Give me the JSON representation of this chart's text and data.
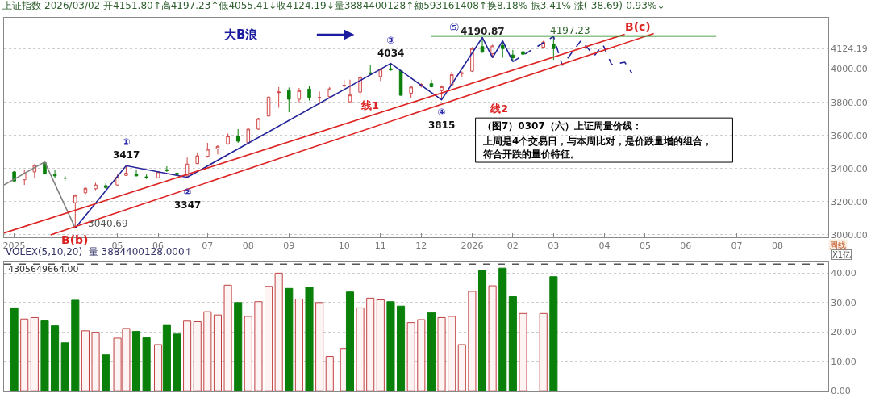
{
  "chart_data": [
    {
      "type": "candlestick",
      "title": "上证指数 2026/03/02 开4151.80↑高4197.23↑低4055.41↓收4124.19↓量3884400128↑额593161408↑换8.18% 振3.41% 涨(-38.69)-0.93%↓",
      "x": [
        "2025-02-24",
        "2025-03-03",
        "2025-03-10",
        "2025-03-17",
        "2025-03-24",
        "2025-03-31",
        "2025-04-07",
        "2025-04-14",
        "2025-04-21",
        "2025-04-28",
        "2025-05-06",
        "2025-05-12",
        "2025-05-19",
        "2025-05-26",
        "2025-06-03",
        "2025-06-09",
        "2025-06-16",
        "2025-06-23",
        "2025-06-30",
        "2025-07-07",
        "2025-07-14",
        "2025-07-21",
        "2025-07-28",
        "2025-08-04",
        "2025-08-11",
        "2025-08-18",
        "2025-08-25",
        "2025-09-01",
        "2025-09-08",
        "2025-09-15",
        "2025-09-22",
        "2025-09-29",
        "2025-10-09",
        "2025-10-13",
        "2025-10-20",
        "2025-10-27",
        "2025-11-03",
        "2025-11-10",
        "2025-11-17",
        "2025-11-24",
        "2025-12-01",
        "2025-12-08",
        "2025-12-15",
        "2025-12-22",
        "2025-12-29",
        "2026-01-05",
        "2026-01-12",
        "2026-01-19",
        "2026-01-26",
        "2026-02-02",
        "2026-02-09",
        "2026-02-23",
        "2026-03-02"
      ],
      "ohlc": [
        [
          3380,
          3385,
          3320,
          3325
        ],
        [
          3332,
          3395,
          3301,
          3372
        ],
        [
          3380,
          3427,
          3340,
          3419
        ],
        [
          3435,
          3440,
          3365,
          3367
        ],
        [
          3364,
          3391,
          3341,
          3356
        ],
        [
          3344,
          3356,
          3325,
          3342
        ],
        [
          3194,
          3245,
          3040.69,
          3238
        ],
        [
          3254,
          3289,
          3245,
          3281
        ],
        [
          3278,
          3314,
          3270,
          3301
        ],
        [
          3297,
          3309,
          3277,
          3286
        ],
        [
          3301,
          3364,
          3293,
          3348
        ],
        [
          3359,
          3417,
          3356,
          3372
        ],
        [
          3367,
          3391,
          3353,
          3356
        ],
        [
          3350,
          3364,
          3337,
          3347
        ],
        [
          3344,
          3385,
          3340,
          3380
        ],
        [
          3393,
          3414,
          3380,
          3388
        ],
        [
          3372,
          3388,
          3359,
          3364
        ],
        [
          3356,
          3466,
          3347,
          3427
        ],
        [
          3430,
          3497,
          3427,
          3477
        ],
        [
          3474,
          3555,
          3466,
          3516
        ],
        [
          3518,
          3540,
          3486,
          3534
        ],
        [
          3549,
          3611,
          3544,
          3596
        ],
        [
          3596,
          3638,
          3555,
          3565
        ],
        [
          3555,
          3646,
          3552,
          3638
        ],
        [
          3638,
          3706,
          3634,
          3701
        ],
        [
          3717,
          3836,
          3714,
          3831
        ],
        [
          3858,
          3892,
          3767,
          3862
        ],
        [
          3870,
          3889,
          3740,
          3818
        ],
        [
          3818,
          3886,
          3800,
          3870
        ],
        [
          3880,
          3901,
          3810,
          3829
        ],
        [
          3825,
          3865,
          3787,
          3829
        ],
        [
          3834,
          3892,
          3826,
          3881
        ],
        [
          3898,
          3936,
          3889,
          3902
        ],
        [
          3803,
          3936,
          3800,
          3844
        ],
        [
          3861,
          3960,
          3827,
          3951
        ],
        [
          3978,
          4027,
          3967,
          3972
        ],
        [
          3955,
          4006,
          3928,
          3999
        ],
        [
          4002,
          4034,
          3991,
          3995
        ],
        [
          3991,
          3995,
          3839,
          3842
        ],
        [
          3855,
          3897,
          3823,
          3892
        ],
        [
          3903,
          3915,
          3889,
          3907
        ],
        [
          3912,
          3936,
          3889,
          3894
        ],
        [
          3870,
          3902,
          3815,
          3894
        ],
        [
          3905,
          3983,
          3902,
          3967
        ],
        [
          3973,
          3986,
          3955,
          3977
        ],
        [
          3988,
          4132,
          3983,
          4124
        ],
        [
          4136,
          4190.87,
          4097,
          4105
        ],
        [
          4093,
          4147,
          4069,
          4140
        ],
        [
          4143,
          4171,
          4069,
          4124
        ],
        [
          4085,
          4116,
          4045,
          4069
        ],
        [
          4105,
          4140,
          4077,
          4090
        ],
        [
          4132,
          4171,
          4124,
          4163
        ],
        [
          4151.8,
          4197.23,
          4055.41,
          4124.19
        ]
      ],
      "colors": [
        "#0a800a",
        "#d04545",
        "#d04545",
        "#0a800a",
        "#0a800a",
        "#0a800a",
        "#d04545",
        "#d04545",
        "#d04545",
        "#0a800a",
        "#d04545",
        "#d04545",
        "#0a800a",
        "#0a800a",
        "#d04545",
        "#0a800a",
        "#0a800a",
        "#d04545",
        "#d04545",
        "#d04545",
        "#d04545",
        "#d04545",
        "#0a800a",
        "#d04545",
        "#d04545",
        "#d04545",
        "#d04545",
        "#0a800a",
        "#d04545",
        "#0a800a",
        "#d04545",
        "#d04545",
        "#d04545",
        "#d04545",
        "#d04545",
        "#0a800a",
        "#d04545",
        "#0a800a",
        "#0a800a",
        "#d04545",
        "#d04545",
        "#0a800a",
        "#d04545",
        "#d04545",
        "#d04545",
        "#d04545",
        "#0a800a",
        "#d04545",
        "#0a800a",
        "#0a800a",
        "#0a800a",
        "#d04545",
        "#0a800a"
      ],
      "series": [
        {
          "type": "line",
          "color": "#808080",
          "x": [
            "2025-02-17",
            "2025-03-17",
            "2025-04-07"
          ],
          "values": [
            3301,
            3440,
            3040.69
          ]
        },
        {
          "type": "line",
          "color": "#22229a",
          "x": [
            "2025-04-07",
            "2025-05-12",
            "2025-06-23",
            "2025-11-10",
            "2025-12-15",
            "2026-01-12",
            "2026-01-19",
            "2026-01-26",
            "2026-02-02"
          ],
          "values": [
            3040.69,
            3417,
            3347,
            4034,
            3815,
            4190.87,
            4069,
            4171,
            4045
          ]
        },
        {
          "type": "line",
          "color": "#22229a",
          "line_style": "dashed",
          "x": [
            "2026-02-02",
            "2026-03-02",
            "2026-03-08",
            "2026-03-21",
            "2026-03-30",
            "2026-04-05",
            "2026-04-11",
            "2026-04-20",
            "2026-04-25"
          ],
          "values": [
            4045,
            4197.23,
            4022,
            4174,
            4080,
            4147,
            4027,
            4042,
            3975
          ]
        },
        {
          "type": "line",
          "color": "#dd2222",
          "x": [
            "2025-02-17",
            "2026-04-20"
          ],
          "values": [
            3011,
            4210
          ]
        },
        {
          "type": "line",
          "color": "#dd2222",
          "x": [
            "2025-03-21",
            "2026-05-10"
          ],
          "values": [
            3000,
            4215
          ]
        },
        {
          "type": "line",
          "color": "#1a8a1a",
          "x": [
            "2025-12-08",
            "2026-06-22"
          ],
          "values": [
            4200,
            4200
          ]
        }
      ],
      "xlim": [
        "2025-02-17",
        "2026-09-07"
      ],
      "xticks": [
        {
          "value": "2025-02-24",
          "label": "2025"
        },
        {
          "value": "2025-05-06",
          "label": "05"
        },
        {
          "value": "2025-06-03",
          "label": "06"
        },
        {
          "value": "2025-07-07",
          "label": "07"
        },
        {
          "value": "2025-08-04",
          "label": "08"
        },
        {
          "value": "2025-09-01",
          "label": "09"
        },
        {
          "value": "2025-10-09",
          "label": "10"
        },
        {
          "value": "2025-11-03",
          "label": "11"
        },
        {
          "value": "2025-12-01",
          "label": "12"
        },
        {
          "value": "2026-01-05",
          "label": "2026"
        },
        {
          "value": "2026-02-02",
          "label": "02"
        },
        {
          "value": "2026-03-02",
          "label": "03"
        },
        {
          "value": "2026-04-06",
          "label": "04"
        },
        {
          "value": "2026-05-04",
          "label": "05"
        },
        {
          "value": "2026-06-01",
          "label": "06"
        },
        {
          "value": "2026-07-06",
          "label": "07"
        },
        {
          "value": "2026-08-03",
          "label": "08"
        }
      ],
      "ylim": [
        2985,
        4310
      ],
      "yticks": [
        {
          "value": 3000,
          "label": "3000.00"
        },
        {
          "value": 3200,
          "label": "3200.00"
        },
        {
          "value": 3400,
          "label": "3400.00"
        },
        {
          "value": 3600,
          "label": "3600.00"
        },
        {
          "value": 3800,
          "label": "3800.00"
        },
        {
          "value": 4000,
          "label": "4000.00"
        },
        {
          "value": 4124.19,
          "label": "4124.19"
        }
      ],
      "grid": "y",
      "annotations": [
        "大B浪",
        {
          "text": "①\n3417",
          "x": "2025-05-12",
          "y": 3417
        },
        {
          "text": "②\n3347",
          "x": "2025-06-23",
          "y": 3347
        },
        {
          "text": "③\n4034",
          "x": "2025-11-10",
          "y": 4034
        },
        {
          "text": "④\n3815",
          "x": "2025-12-15",
          "y": 3815
        },
        "⑤",
        {
          "text": "4190.87",
          "x": "2026-01-12",
          "y": 4190.87
        },
        {
          "text": "4197.23",
          "x": "2026-03-02",
          "y": 4197.23
        },
        {
          "text": "B(b)",
          "x": "2025-04-07",
          "y": 3040.69
        },
        {
          "text": "3040.69",
          "x": "2025-04-07",
          "y": 3040.69
        },
        {
          "text": "B(c)",
          "x": "2026-04-27",
          "y": 4177
        },
        "线1",
        "线2",
        "（图7）0307（六）上证周量价线：",
        "上周是4个交易日，与本周比对，是价跌量增的组合，",
        "符合开跌的量价特征。",
        "周线"
      ]
    },
    {
      "type": "bar",
      "title": "VOLEX(5,10,20)  量 3884400128.000↑",
      "ylabel": "X1亿",
      "x": [
        "2025-02-24",
        "2025-03-03",
        "2025-03-10",
        "2025-03-17",
        "2025-03-24",
        "2025-03-31",
        "2025-04-07",
        "2025-04-14",
        "2025-04-21",
        "2025-04-28",
        "2025-05-06",
        "2025-05-12",
        "2025-05-19",
        "2025-05-26",
        "2025-06-03",
        "2025-06-09",
        "2025-06-16",
        "2025-06-23",
        "2025-06-30",
        "2025-07-07",
        "2025-07-14",
        "2025-07-21",
        "2025-07-28",
        "2025-08-04",
        "2025-08-11",
        "2025-08-18",
        "2025-08-25",
        "2025-09-01",
        "2025-09-08",
        "2025-09-15",
        "2025-09-22",
        "2025-09-29",
        "2025-10-09",
        "2025-10-13",
        "2025-10-20",
        "2025-10-27",
        "2025-11-03",
        "2025-11-10",
        "2025-11-17",
        "2025-11-24",
        "2025-12-01",
        "2025-12-08",
        "2025-12-15",
        "2025-12-22",
        "2025-12-29",
        "2026-01-05",
        "2026-01-12",
        "2026-01-19",
        "2026-01-26",
        "2026-02-02",
        "2026-02-09",
        "2026-02-23",
        "2026-03-02"
      ],
      "values": [
        28.2,
        24.4,
        24.9,
        23.8,
        22.1,
        16.3,
        30.8,
        20.4,
        19.9,
        12.2,
        17.9,
        21.2,
        20.2,
        18.0,
        15.7,
        22.5,
        19.3,
        23.7,
        23.5,
        26.9,
        25.8,
        35.9,
        30.0,
        25.3,
        30.3,
        35.5,
        40.0,
        34.8,
        31.2,
        35.2,
        30.0,
        11.7,
        14.4,
        33.6,
        28.2,
        31.5,
        30.9,
        30.3,
        28.8,
        23.2,
        24.2,
        26.6,
        24.9,
        25.3,
        15.7,
        33.8,
        41.0,
        35.7,
        41.7,
        32.0,
        26.3,
        26.3,
        38.8
      ],
      "colors": [
        "#0a800a",
        "#fff4f4",
        "#fff4f4",
        "#0a800a",
        "#0a800a",
        "#0a800a",
        "#0a800a",
        "#fff4f4",
        "#fff4f4",
        "#0a800a",
        "#fff4f4",
        "#fff4f4",
        "#0a800a",
        "#0a800a",
        "#fff4f4",
        "#0a800a",
        "#0a800a",
        "#fff4f4",
        "#fff4f4",
        "#fff4f4",
        "#fff4f4",
        "#fff4f4",
        "#0a800a",
        "#fff4f4",
        "#fff4f4",
        "#fff4f4",
        "#fff4f4",
        "#0a800a",
        "#fff4f4",
        "#0a800a",
        "#fff4f4",
        "#fff4f4",
        "#fff4f4",
        "#0a800a",
        "#fff4f4",
        "#fff4f4",
        "#fff4f4",
        "#0a800a",
        "#0a800a",
        "#fff4f4",
        "#fff4f4",
        "#0a800a",
        "#fff4f4",
        "#fff4f4",
        "#fff4f4",
        "#fff4f4",
        "#0a800a",
        "#fff4f4",
        "#0a800a",
        "#0a800a",
        "#fff4f4",
        "#fff4f4",
        "#0a800a"
      ],
      "xlim": [
        "2025-02-17",
        "2026-09-07"
      ],
      "ylim": [
        0,
        44
      ],
      "yticks": [
        {
          "value": 0,
          "label": "0.00"
        },
        {
          "value": 10,
          "label": "10.00"
        },
        {
          "value": 20,
          "label": "20.00"
        },
        {
          "value": 30,
          "label": "30.00"
        },
        {
          "value": 40,
          "label": "40.00"
        }
      ],
      "tick_labels": "y",
      "grid": "y",
      "ref_lines": [
        {
          "axis": "y",
          "value": 43.06,
          "color": "#555555",
          "line_style": "dashed"
        }
      ],
      "annotations": [
        "4305649664.00"
      ]
    }
  ]
}
